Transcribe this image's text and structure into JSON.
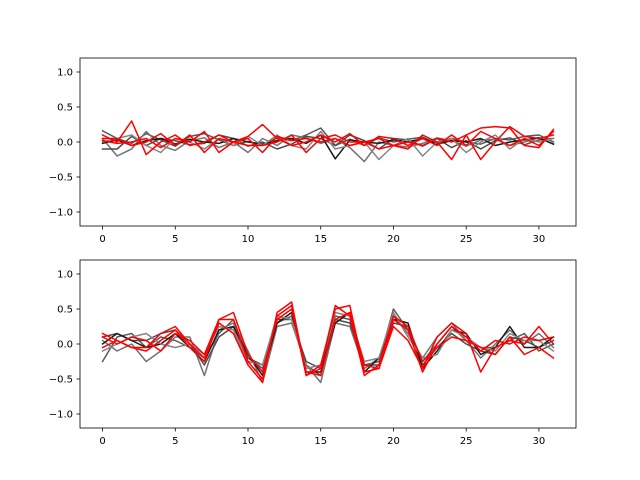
{
  "chart_data": [
    {
      "type": "line",
      "title": "",
      "xlabel": "",
      "ylabel": "",
      "xlim": [
        -1.55,
        32.55
      ],
      "ylim": [
        -1.2,
        1.2
      ],
      "xticks": [
        0,
        5,
        10,
        15,
        20,
        25,
        30
      ],
      "yticks": [
        -1.0,
        -0.5,
        0.0,
        0.5,
        1.0
      ],
      "xtick_labels": [
        "0",
        "5",
        "10",
        "15",
        "20",
        "25",
        "30"
      ],
      "ytick_labels": [
        "−1.0",
        "−0.5",
        "0.0",
        "0.5",
        "1.0"
      ],
      "grid": false,
      "x": [
        0,
        1,
        2,
        3,
        4,
        5,
        6,
        7,
        8,
        9,
        10,
        11,
        12,
        13,
        14,
        15,
        16,
        17,
        18,
        19,
        20,
        21,
        22,
        23,
        24,
        25,
        26,
        27,
        28,
        29,
        30,
        31
      ],
      "series": [
        {
          "color": "#595959",
          "values": [
            0.16,
            0.05,
            -0.02,
            0.12,
            0.03,
            -0.06,
            0.08,
            0.12,
            0.03,
            -0.05,
            0.01,
            -0.04,
            0.06,
            0.02,
            0.1,
            0.2,
            -0.05,
            0.04,
            -0.05,
            0.06,
            0.0,
            0.04,
            0.07,
            -0.02,
            0.05,
            0.0,
            -0.03,
            0.05,
            0.03,
            0.08,
            0.1,
            0.0
          ]
        },
        {
          "color": "#737373",
          "values": [
            0.05,
            -0.2,
            -0.1,
            0.15,
            -0.05,
            -0.12,
            0.02,
            0.06,
            -0.08,
            0.0,
            -0.15,
            0.05,
            -0.05,
            0.1,
            0.06,
            -0.02,
            0.05,
            -0.08,
            -0.28,
            0.0,
            -0.05,
            -0.07,
            -0.02,
            0.06,
            0.02,
            -0.06,
            0.03,
            0.04,
            -0.05,
            0.0,
            0.06,
            -0.03
          ]
        },
        {
          "color": "#4d4d4d",
          "values": [
            -0.1,
            -0.1,
            0.08,
            -0.05,
            0.05,
            0.02,
            -0.04,
            -0.02,
            0.1,
            0.05,
            -0.06,
            0.0,
            -0.1,
            -0.03,
            0.08,
            0.05,
            -0.05,
            0.1,
            0.02,
            -0.1,
            0.05,
            0.03,
            -0.06,
            0.05,
            -0.08,
            0.02,
            -0.1,
            0.02,
            0.06,
            -0.04,
            0.03,
            0.05
          ]
        },
        {
          "color": "#1a1a1a",
          "values": [
            -0.02,
            0.03,
            -0.05,
            0.02,
            0.05,
            -0.03,
            0.04,
            0.0,
            -0.02,
            0.05,
            0.0,
            -0.03,
            0.02,
            0.05,
            -0.02,
            0.1,
            -0.24,
            0.03,
            0.0,
            -0.02,
            0.03,
            0.0,
            0.05,
            -0.03,
            0.02,
            0.0,
            0.05,
            -0.05,
            0.0,
            0.03,
            0.06,
            -0.03
          ]
        },
        {
          "color": "#858585",
          "values": [
            0.0,
            0.05,
            0.1,
            -0.05,
            -0.15,
            0.05,
            0.0,
            -0.1,
            0.05,
            -0.05,
            0.08,
            -0.05,
            0.1,
            -0.05,
            -0.1,
            0.15,
            -0.1,
            -0.05,
            0.0,
            -0.25,
            -0.05,
            0.05,
            -0.2,
            0.0,
            0.05,
            -0.15,
            0.0,
            0.1,
            -0.1,
            0.05,
            0.0,
            0.05
          ]
        },
        {
          "color": "#ff0000",
          "values": [
            0.1,
            0.0,
            0.3,
            -0.18,
            0.0,
            0.1,
            -0.05,
            0.0,
            0.1,
            0.0,
            0.08,
            0.25,
            0.05,
            -0.05,
            0.0,
            0.1,
            0.0,
            0.12,
            -0.05,
            0.08,
            0.05,
            -0.05,
            0.05,
            -0.05,
            0.1,
            -0.05,
            0.15,
            0.05,
            -0.05,
            0.05,
            -0.05,
            0.15
          ]
        },
        {
          "color": "#ff0000",
          "values": [
            0.05,
            0.05,
            -0.05,
            0.0,
            0.12,
            -0.05,
            0.1,
            -0.15,
            0.05,
            0.0,
            -0.05,
            -0.05,
            0.0,
            0.1,
            -0.15,
            0.05,
            0.1,
            0.0,
            0.0,
            0.05,
            -0.05,
            -0.1,
            0.1,
            0.0,
            -0.25,
            0.1,
            0.2,
            0.22,
            0.2,
            -0.05,
            -0.08,
            0.18
          ]
        },
        {
          "color": "#ff0000",
          "values": [
            0.02,
            -0.02,
            0.0,
            0.05,
            -0.08,
            0.05,
            0.0,
            0.15,
            -0.15,
            0.0,
            0.05,
            -0.15,
            0.08,
            0.02,
            0.05,
            0.0,
            0.05,
            -0.05,
            0.0,
            -0.1,
            -0.05,
            0.0,
            -0.05,
            0.05,
            0.0,
            0.1,
            -0.25,
            0.0,
            0.22,
            0.08,
            0.05,
            0.1
          ]
        }
      ]
    },
    {
      "type": "line",
      "title": "",
      "xlabel": "",
      "ylabel": "",
      "xlim": [
        -1.55,
        32.55
      ],
      "ylim": [
        -1.2,
        1.2
      ],
      "xticks": [
        0,
        5,
        10,
        15,
        20,
        25,
        30
      ],
      "yticks": [
        -1.0,
        -0.5,
        0.0,
        0.5,
        1.0
      ],
      "xtick_labels": [
        "0",
        "5",
        "10",
        "15",
        "20",
        "25",
        "30"
      ],
      "ytick_labels": [
        "−1.0",
        "−0.5",
        "0.0",
        "0.5",
        "1.0"
      ],
      "grid": false,
      "x": [
        0,
        1,
        2,
        3,
        4,
        5,
        6,
        7,
        8,
        9,
        10,
        11,
        12,
        13,
        14,
        15,
        16,
        17,
        18,
        19,
        20,
        21,
        22,
        23,
        24,
        25,
        26,
        27,
        28,
        29,
        30,
        31
      ],
      "series": [
        {
          "color": "#595959",
          "values": [
            -0.25,
            0.1,
            0.15,
            -0.05,
            0.1,
            0.05,
            -0.05,
            -0.2,
            0.15,
            0.35,
            -0.2,
            -0.35,
            0.3,
            0.4,
            -0.3,
            -0.45,
            0.4,
            0.35,
            -0.3,
            -0.25,
            0.5,
            0.2,
            -0.25,
            0.0,
            0.25,
            0.05,
            -0.05,
            -0.05,
            0.05,
            0.15,
            -0.1,
            0.0
          ]
        },
        {
          "color": "#737373",
          "values": [
            0.05,
            -0.1,
            0.0,
            -0.25,
            -0.1,
            0.1,
            0.1,
            -0.45,
            0.2,
            0.3,
            -0.1,
            -0.55,
            0.25,
            0.3,
            -0.3,
            -0.55,
            0.3,
            0.25,
            -0.35,
            -0.2,
            0.4,
            0.15,
            -0.2,
            0.1,
            0.3,
            0.05,
            -0.2,
            0.0,
            0.2,
            0.0,
            0.15,
            -0.05
          ]
        },
        {
          "color": "#4d4d4d",
          "values": [
            0.1,
            0.15,
            0.05,
            0.05,
            0.15,
            0.2,
            0.0,
            -0.3,
            0.1,
            0.25,
            -0.2,
            -0.3,
            0.35,
            0.35,
            -0.25,
            -0.35,
            0.35,
            0.3,
            -0.3,
            -0.3,
            0.3,
            0.25,
            -0.3,
            -0.05,
            0.15,
            0.0,
            -0.1,
            -0.15,
            0.1,
            0.05,
            -0.05,
            0.05
          ]
        },
        {
          "color": "#1a1a1a",
          "values": [
            0.0,
            0.15,
            0.05,
            -0.05,
            0.0,
            0.15,
            -0.05,
            -0.25,
            0.2,
            0.25,
            -0.15,
            -0.45,
            0.3,
            0.45,
            -0.4,
            -0.4,
            0.3,
            0.45,
            -0.4,
            -0.2,
            0.35,
            0.3,
            -0.35,
            -0.1,
            0.2,
            0.15,
            -0.15,
            -0.05,
            0.25,
            -0.05,
            -0.05,
            0.1
          ]
        },
        {
          "color": "#858585",
          "values": [
            -0.1,
            0.0,
            0.1,
            0.15,
            0.0,
            -0.05,
            0.0,
            -0.15,
            0.25,
            0.2,
            -0.25,
            -0.3,
            0.4,
            0.35,
            -0.35,
            -0.3,
            0.45,
            0.4,
            -0.25,
            -0.2,
            0.45,
            0.1,
            -0.2,
            -0.15,
            0.2,
            0.1,
            -0.05,
            -0.1,
            0.15,
            0.05,
            0.05,
            -0.1
          ]
        },
        {
          "color": "#ff0000",
          "values": [
            0.15,
            0.05,
            -0.05,
            -0.05,
            0.15,
            0.25,
            0.0,
            -0.2,
            0.3,
            0.15,
            -0.3,
            -0.55,
            0.45,
            0.6,
            -0.45,
            -0.3,
            0.5,
            0.55,
            -0.4,
            -0.35,
            0.25,
            0.05,
            -0.35,
            0.1,
            0.3,
            0.15,
            -0.4,
            -0.05,
            0.05,
            0.0,
            0.25,
            0.0
          ]
        },
        {
          "color": "#ff0000",
          "values": [
            -0.05,
            0.05,
            -0.05,
            -0.1,
            0.05,
            0.2,
            -0.05,
            -0.25,
            0.35,
            0.45,
            -0.15,
            -0.4,
            0.35,
            0.5,
            -0.45,
            -0.35,
            0.55,
            0.4,
            -0.45,
            -0.3,
            0.4,
            0.25,
            -0.25,
            -0.05,
            0.1,
            0.05,
            -0.05,
            -0.15,
            0.1,
            -0.15,
            -0.05,
            -0.2
          ]
        },
        {
          "color": "#ff0000",
          "values": [
            0.1,
            0.0,
            0.1,
            0.05,
            -0.1,
            0.15,
            0.05,
            -0.15,
            0.35,
            0.35,
            -0.25,
            -0.5,
            0.4,
            0.55,
            -0.4,
            -0.45,
            0.35,
            0.45,
            -0.3,
            -0.35,
            0.35,
            0.2,
            -0.4,
            0.0,
            0.25,
            0.1,
            -0.1,
            0.05,
            0.0,
            0.1,
            0.05,
            0.1
          ]
        }
      ]
    }
  ]
}
